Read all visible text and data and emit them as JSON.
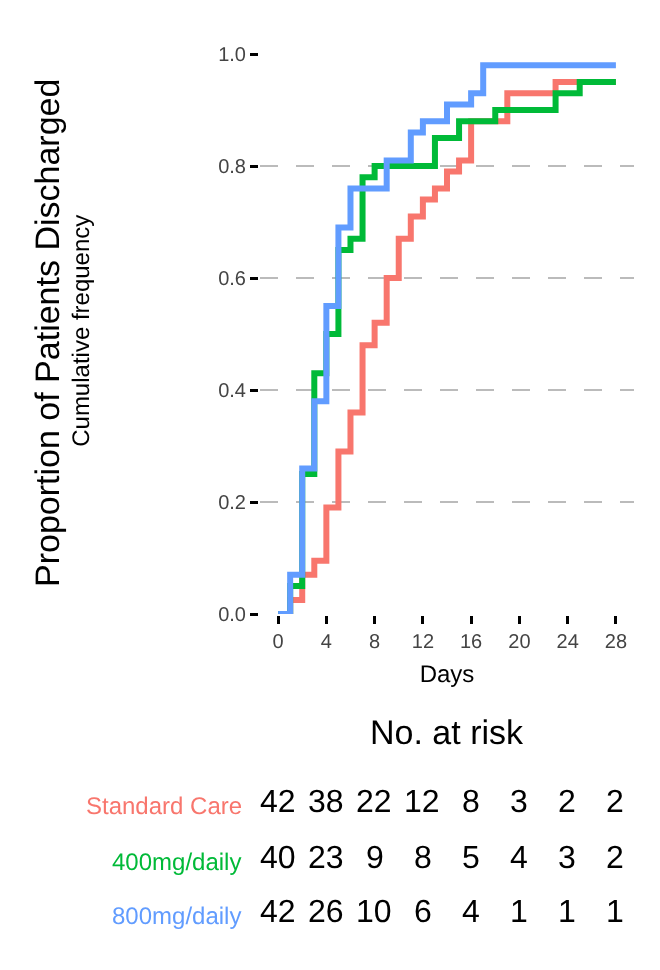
{
  "chart_data": {
    "type": "step",
    "ylabel": "Proportion of Patients Discharged",
    "subtitle": "Cumulative frequency",
    "xlabel": "Days",
    "xlim": [
      -1.5,
      29.5
    ],
    "xticks": [
      0,
      4,
      8,
      12,
      16,
      20,
      24,
      28
    ],
    "ylim": [
      0,
      1
    ],
    "yticks": [
      {
        "value": 0,
        "label": "0.0"
      },
      0.2,
      0.4,
      0.6,
      0.8,
      {
        "value": 1,
        "label": "1.0"
      }
    ],
    "grid": "y",
    "legend": false,
    "annotations": [
      "No. at risk",
      "42 38 22 12 8 3 2 2",
      "40 23 9 8 5 4 3 2",
      "42 26 10 6 4 1 1 1"
    ],
    "series": [
      {
        "name": "Standard Care",
        "color": "#f8766d",
        "x": [
          0,
          1,
          2,
          3,
          4,
          5,
          6,
          7,
          8,
          9,
          10,
          11,
          12,
          13,
          14,
          15,
          16,
          19,
          23,
          28
        ],
        "values": [
          0,
          0.025,
          0.07,
          0.095,
          0.19,
          0.29,
          0.36,
          0.48,
          0.52,
          0.6,
          0.67,
          0.71,
          0.74,
          0.76,
          0.79,
          0.81,
          0.88,
          0.93,
          0.95,
          0.95
        ]
      },
      {
        "name": "400mg/daily",
        "color": "#00ba38",
        "x": [
          0,
          1,
          2,
          3,
          4,
          5,
          6,
          7,
          8,
          13,
          15,
          18,
          23,
          25,
          28
        ],
        "values": [
          0,
          0.05,
          0.25,
          0.43,
          0.5,
          0.65,
          0.67,
          0.78,
          0.8,
          0.85,
          0.88,
          0.9,
          0.93,
          0.95,
          0.95
        ]
      },
      {
        "name": "800mg/daily",
        "color": "#619cff",
        "x": [
          0,
          1,
          2,
          3,
          4,
          5,
          6,
          9,
          11,
          12,
          14,
          16,
          17,
          28
        ],
        "values": [
          0,
          0.07,
          0.26,
          0.38,
          0.55,
          0.69,
          0.76,
          0.81,
          0.86,
          0.88,
          0.91,
          0.93,
          0.98,
          0.98
        ]
      }
    ]
  }
}
